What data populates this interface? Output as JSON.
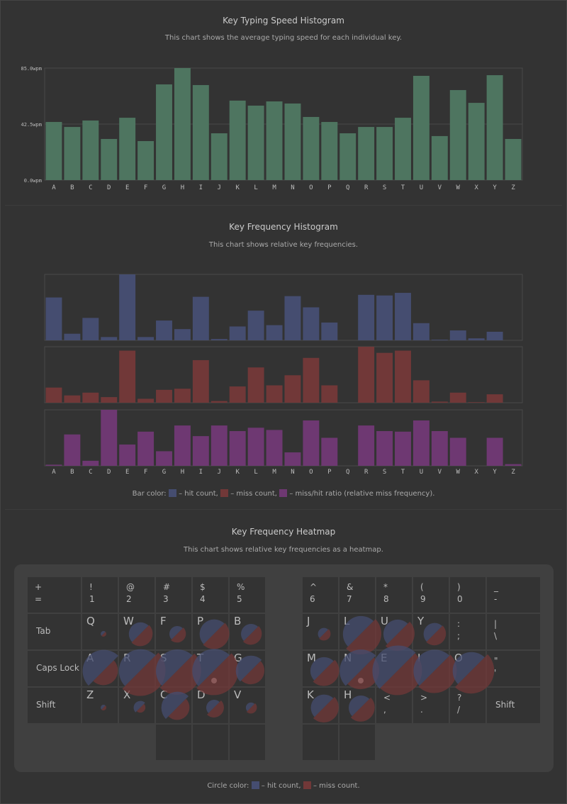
{
  "speed": {
    "title": "Key Typing Speed Histogram",
    "subtitle": "This chart shows the average typing speed for each individual key."
  },
  "freq": {
    "title": "Key Frequency Histogram",
    "subtitle": "This chart shows relative key frequencies.",
    "legend": {
      "prefix": "Bar color:",
      "hit": "– hit count,",
      "miss": "– miss count,",
      "ratio": "– miss/hit ratio (relative miss frequency)."
    }
  },
  "heat": {
    "title": "Key Frequency Heatmap",
    "subtitle": "This chart shows relative key frequencies as a heatmap.",
    "legend": {
      "prefix": "Circle color:",
      "hit": "– hit count,",
      "miss": "– miss count."
    }
  },
  "colors": {
    "speed": "#4e7560",
    "hit": "#454d70",
    "miss": "#713838",
    "ratio": "#6e3872"
  },
  "chart_data": [
    {
      "type": "bar",
      "title": "Key Typing Speed Histogram",
      "categories": [
        "A",
        "B",
        "C",
        "D",
        "E",
        "F",
        "G",
        "H",
        "I",
        "J",
        "K",
        "L",
        "M",
        "N",
        "O",
        "P",
        "Q",
        "R",
        "S",
        "T",
        "U",
        "V",
        "W",
        "X",
        "Y",
        "Z"
      ],
      "values": [
        44.1,
        40.3,
        45.2,
        31.2,
        47.3,
        29.6,
        72.6,
        85.0,
        72.1,
        35.5,
        60.3,
        56.5,
        59.7,
        58.1,
        47.9,
        44.1,
        35.5,
        40.3,
        40.3,
        47.3,
        79.1,
        33.4,
        68.3,
        58.6,
        79.6,
        31.2
      ],
      "ylim": [
        0,
        85
      ],
      "yticks": [
        "0.0wpm",
        "42.5wpm",
        "85.0wpm"
      ],
      "grid": true
    },
    {
      "type": "bar",
      "title": "Key Frequency Histogram",
      "categories": [
        "A",
        "B",
        "C",
        "D",
        "E",
        "F",
        "G",
        "H",
        "I",
        "J",
        "K",
        "L",
        "M",
        "N",
        "O",
        "P",
        "Q",
        "R",
        "S",
        "T",
        "U",
        "V",
        "W",
        "X",
        "Y",
        "Z"
      ],
      "series": [
        {
          "name": "hit count",
          "values": [
            0.65,
            0.1,
            0.34,
            0.05,
            1.0,
            0.05,
            0.3,
            0.17,
            0.66,
            0.02,
            0.21,
            0.45,
            0.23,
            0.67,
            0.5,
            0.27,
            0,
            0.69,
            0.68,
            0.72,
            0.26,
            0.01,
            0.15,
            0.03,
            0.13,
            0
          ]
        },
        {
          "name": "miss count",
          "values": [
            0.27,
            0.13,
            0.18,
            0.1,
            0.93,
            0.07,
            0.23,
            0.25,
            0.76,
            0.03,
            0.29,
            0.63,
            0.31,
            0.49,
            0.8,
            0.31,
            0,
            1.0,
            0.89,
            0.93,
            0.4,
            0.02,
            0.18,
            0.01,
            0.15,
            0
          ]
        },
        {
          "name": "miss/hit ratio",
          "values": [
            0.02,
            0.56,
            0.09,
            1.0,
            0.38,
            0.61,
            0.26,
            0.72,
            0.53,
            0.72,
            0.62,
            0.68,
            0.64,
            0.24,
            0.81,
            0.5,
            0,
            0.72,
            0.62,
            0.61,
            0.81,
            0.62,
            0.5,
            0,
            0.5,
            0.03
          ]
        }
      ]
    }
  ],
  "keyboard": {
    "left": [
      [
        [
          "+\n=",
          2
        ],
        [
          "!\n1"
        ],
        [
          "@\n2"
        ],
        [
          "#\n3"
        ],
        [
          "$\n4"
        ],
        [
          "%\n5"
        ]
      ],
      [
        [
          "Tab",
          2
        ],
        [
          "Q"
        ],
        [
          "W"
        ],
        [
          "F"
        ],
        [
          "P"
        ],
        [
          "B"
        ]
      ],
      [
        [
          "Caps Lock",
          2
        ],
        [
          "A"
        ],
        [
          "R"
        ],
        [
          "S"
        ],
        [
          "T"
        ],
        [
          "G"
        ]
      ],
      [
        [
          "Shift",
          2
        ],
        [
          "Z"
        ],
        [
          "X"
        ],
        [
          "C"
        ],
        [
          "D"
        ],
        [
          "V"
        ]
      ],
      [
        [
          "",
          0
        ],
        [
          "",
          0
        ],
        [
          "",
          0
        ],
        [
          ""
        ],
        [
          ""
        ],
        [
          ""
        ]
      ]
    ],
    "right": [
      [
        [
          "^\n6"
        ],
        [
          "&\n7"
        ],
        [
          "*\n8"
        ],
        [
          "(\n9"
        ],
        [
          ")\n0"
        ],
        [
          "_\n-",
          2
        ]
      ],
      [
        [
          "J"
        ],
        [
          "L"
        ],
        [
          "U"
        ],
        [
          "Y"
        ],
        [
          ":\n;"
        ],
        [
          "|\n\\",
          2
        ]
      ],
      [
        [
          "M"
        ],
        [
          "N"
        ],
        [
          "E"
        ],
        [
          "I"
        ],
        [
          "O"
        ],
        [
          "\"\n'",
          2
        ]
      ],
      [
        [
          "K"
        ],
        [
          "H"
        ],
        [
          "<\n,"
        ],
        [
          ">\n."
        ],
        [
          "?\n/"
        ],
        [
          "Shift",
          2
        ]
      ],
      [
        [
          ""
        ],
        [
          ""
        ]
      ]
    ]
  }
}
